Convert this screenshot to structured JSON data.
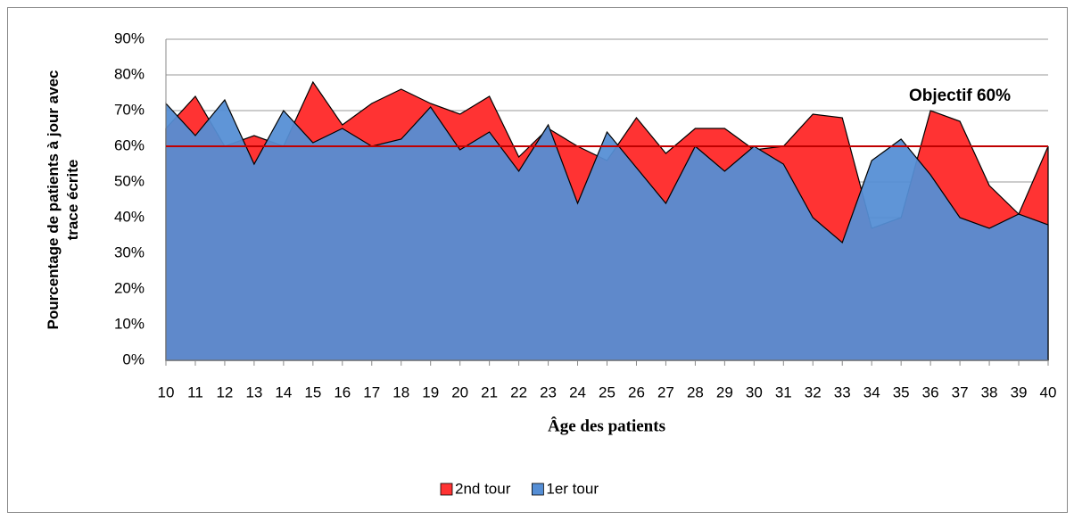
{
  "chart_data": {
    "type": "area",
    "y_label": "Pourcentage de patients à jour avec trace écrite",
    "x_label": "Âge des patients",
    "categories": [
      "10",
      "11",
      "12",
      "13",
      "14",
      "15",
      "16",
      "17",
      "18",
      "19",
      "20",
      "21",
      "22",
      "23",
      "24",
      "25",
      "26",
      "27",
      "28",
      "29",
      "30",
      "31",
      "32",
      "33",
      "34",
      "35",
      "36",
      "37",
      "38",
      "39",
      "40"
    ],
    "series": [
      {
        "name": "2nd tour",
        "color": "#ff3333",
        "values": [
          65,
          74,
          60,
          63,
          60,
          78,
          66,
          72,
          76,
          72,
          69,
          74,
          57,
          65,
          60,
          56,
          68,
          58,
          65,
          65,
          59,
          60,
          69,
          68,
          37,
          40,
          70,
          67,
          49,
          41,
          60
        ]
      },
      {
        "name": "1er tour",
        "color": "#558ed5",
        "values": [
          72,
          63,
          73,
          55,
          70,
          61,
          65,
          60,
          62,
          71,
          59,
          64,
          53,
          66,
          44,
          64,
          54,
          44,
          60,
          53,
          60,
          55,
          40,
          33,
          56,
          62,
          52,
          40,
          37,
          41,
          38
        ]
      }
    ],
    "reference_line": {
      "value": 60,
      "label": "Objectif 60%",
      "color": "#c00000"
    },
    "ylim": [
      0,
      90
    ],
    "yticks": [
      {
        "value": 0,
        "label": "0%"
      },
      {
        "value": 10,
        "label": "10%"
      },
      {
        "value": 20,
        "label": "20%"
      },
      {
        "value": 30,
        "label": "30%"
      },
      {
        "value": 40,
        "label": "40%"
      },
      {
        "value": 50,
        "label": "50%"
      },
      {
        "value": 60,
        "label": "60%"
      },
      {
        "value": 70,
        "label": "70%"
      },
      {
        "value": 80,
        "label": "80%"
      },
      {
        "value": 90,
        "label": "90%"
      }
    ],
    "grid": true,
    "legend": "bottom"
  }
}
